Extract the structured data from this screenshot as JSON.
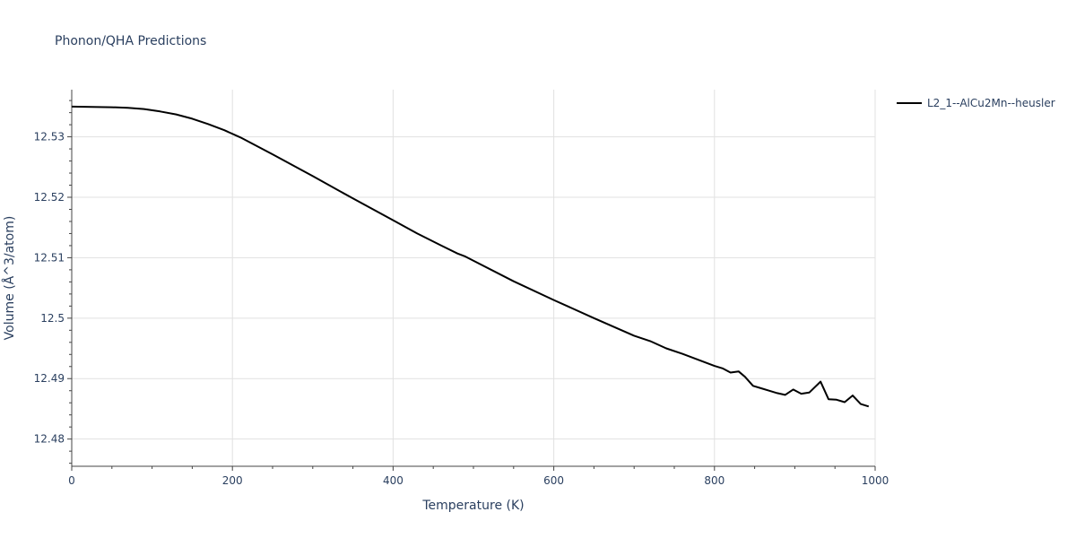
{
  "chart_data": {
    "type": "line",
    "title": "Phonon/QHA Predictions",
    "xlabel": "Temperature (K)",
    "ylabel": "Volume (Å^3/atom)",
    "xlim": [
      0,
      1000
    ],
    "ylim": [
      12.4755,
      12.5378
    ],
    "xticks": [
      0,
      200,
      400,
      600,
      800,
      1000
    ],
    "xtick_labels": [
      "0",
      "200",
      "400",
      "600",
      "800",
      "1000"
    ],
    "yticks": [
      12.48,
      12.49,
      12.5,
      12.51,
      12.52,
      12.53
    ],
    "ytick_labels": [
      "12.48",
      "12.49",
      "12.5",
      "12.51",
      "12.52",
      "12.53"
    ],
    "grid": true,
    "legend_position": "top-right",
    "series": [
      {
        "name": "L2_1--AlCu2Mn--heusler",
        "color": "#000000",
        "x": [
          0,
          50,
          70,
          90,
          110,
          130,
          150,
          170,
          190,
          210,
          250,
          300,
          350,
          400,
          430,
          460,
          480,
          490,
          500,
          550,
          600,
          650,
          700,
          720,
          740,
          760,
          780,
          800,
          810,
          820,
          830,
          838,
          848,
          858,
          868,
          878,
          888,
          898,
          908,
          918,
          932,
          942,
          952,
          962,
          972,
          982,
          992
        ],
        "y": [
          12.535,
          12.5349,
          12.5348,
          12.5346,
          12.5342,
          12.5337,
          12.533,
          12.5321,
          12.5311,
          12.5299,
          12.5271,
          12.5235,
          12.5198,
          12.5162,
          12.514,
          12.512,
          12.5107,
          12.5102,
          12.5095,
          12.5061,
          12.503,
          12.5,
          12.4971,
          12.4962,
          12.495,
          12.4941,
          12.4931,
          12.4921,
          12.4917,
          12.491,
          12.4912,
          12.4903,
          12.4888,
          12.4884,
          12.488,
          12.4876,
          12.4873,
          12.4882,
          12.4875,
          12.4877,
          12.4895,
          12.4866,
          12.4865,
          12.4861,
          12.4872,
          12.4858,
          12.4854
        ]
      }
    ]
  }
}
